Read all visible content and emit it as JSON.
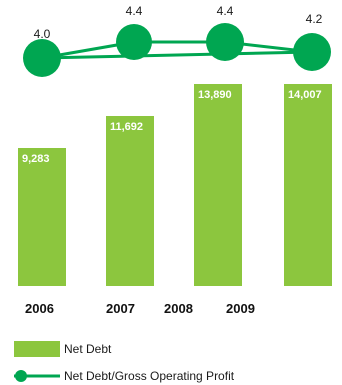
{
  "chart_data": {
    "type": "bar",
    "x_tick_labels": [
      "2006",
      "2007",
      "2008",
      "2009"
    ],
    "series": [
      {
        "name": "Net Debt",
        "type": "bar",
        "values": [
          9283,
          11692,
          13890,
          14007
        ],
        "value_labels": [
          "9,283",
          "11,692",
          "13,890",
          "14,007"
        ],
        "color": "#8cc63e"
      },
      {
        "name": "Net Debt/Gross Operating Profit",
        "type": "line",
        "values": [
          4.0,
          4.4,
          4.4,
          4.2
        ],
        "value_labels": [
          "4.0",
          "4.4",
          "4.4",
          "4.2"
        ],
        "color": "#00a651"
      }
    ],
    "legend_placement": "bottom-left",
    "grid": false
  }
}
